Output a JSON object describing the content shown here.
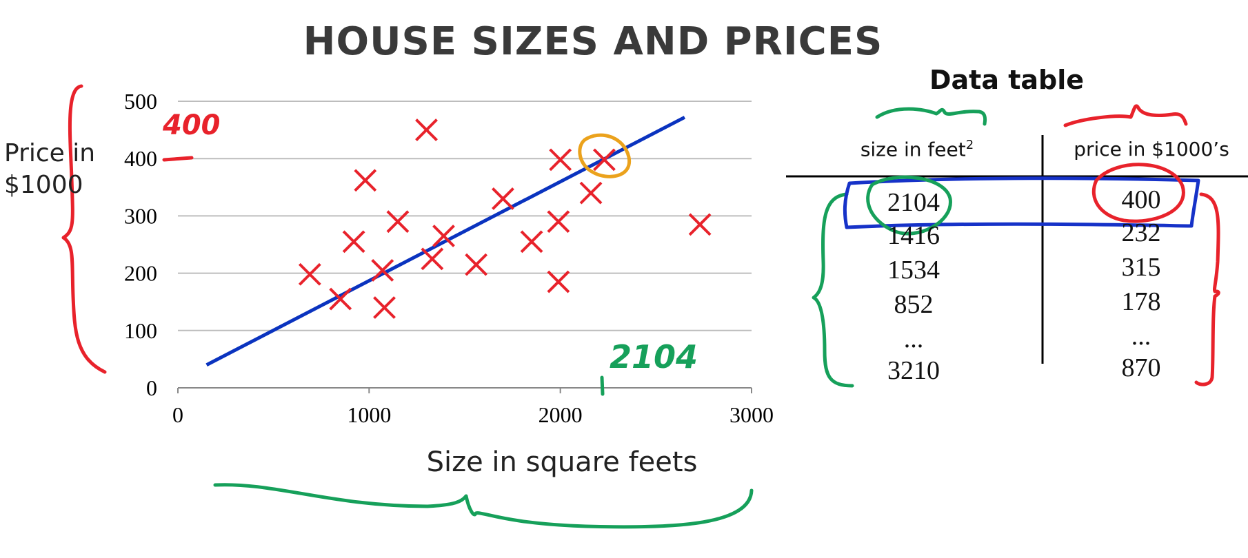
{
  "title": "HOUSE SIZES AND PRICES",
  "chart_data": {
    "type": "scatter",
    "xlabel": "Size in square feets",
    "ylabel": "Price  in $1000",
    "xlim": [
      0,
      3000
    ],
    "ylim": [
      0,
      500
    ],
    "x_ticks": [
      "0",
      "1000",
      "2000",
      "3000"
    ],
    "y_ticks": [
      "0",
      "100",
      "200",
      "300",
      "400",
      "500"
    ],
    "grid": "horizontal",
    "points": [
      [
        690,
        198
      ],
      [
        850,
        155
      ],
      [
        920,
        255
      ],
      [
        980,
        362
      ],
      [
        1070,
        205
      ],
      [
        1080,
        140
      ],
      [
        1150,
        290
      ],
      [
        1300,
        450
      ],
      [
        1330,
        225
      ],
      [
        1390,
        265
      ],
      [
        1560,
        215
      ],
      [
        1700,
        330
      ],
      [
        1850,
        255
      ],
      [
        1990,
        185
      ],
      [
        1990,
        290
      ],
      [
        2000,
        398
      ],
      [
        2160,
        340
      ],
      [
        2230,
        398
      ],
      [
        2730,
        285
      ]
    ],
    "fit_line": {
      "x": [
        150,
        2650
      ],
      "y": [
        40,
        472
      ]
    },
    "highlighted_point": [
      2230,
      398
    ]
  },
  "table": {
    "title": "Data table",
    "headers": {
      "size_prefix": "size in feet",
      "size_sup": "2",
      "price": "price in $1000’s"
    },
    "rows": [
      [
        "2104",
        "400"
      ],
      [
        "1416",
        "232"
      ],
      [
        "1534",
        "315"
      ],
      [
        "852",
        "178"
      ],
      [
        "...",
        "..."
      ],
      [
        "3210",
        "870"
      ]
    ]
  },
  "annotations": {
    "y_marker": "400",
    "x_marker": "2104"
  },
  "colors": {
    "points": "#e8222b",
    "fit_line": "#0a33bf",
    "grid": "#bdbdbd",
    "annotation_red": "#e8222b",
    "annotation_green": "#16a05a",
    "annotation_blue": "#1632c8",
    "annotation_orange": "#eba21c"
  }
}
